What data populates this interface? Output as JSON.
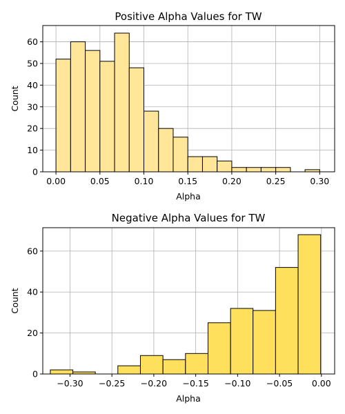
{
  "chart_data": [
    {
      "type": "bar",
      "title": "Positive Alpha Values for TW",
      "xlabel": "Alpha",
      "ylabel": "Count",
      "color": "#ffe699",
      "edge_color": "#000000",
      "grid": true,
      "xlim": [
        -0.015,
        0.317
      ],
      "ylim": [
        0,
        67.5
      ],
      "xticks": [
        0.0,
        0.05,
        0.1,
        0.15,
        0.2,
        0.25,
        0.3
      ],
      "xtick_labels": [
        "0.00",
        "0.05",
        "0.10",
        "0.15",
        "0.20",
        "0.25",
        "0.30"
      ],
      "yticks": [
        0,
        10,
        20,
        30,
        40,
        50,
        60
      ],
      "ytick_labels": [
        "0",
        "10",
        "20",
        "30",
        "40",
        "50",
        "60"
      ],
      "bin_edges": [
        0.0,
        0.01667,
        0.03333,
        0.05,
        0.06667,
        0.08333,
        0.1,
        0.11667,
        0.13333,
        0.15,
        0.16667,
        0.18333,
        0.2,
        0.21667,
        0.23333,
        0.25,
        0.26667,
        0.28333,
        0.3
      ],
      "values": [
        52,
        60,
        56,
        51,
        64,
        48,
        28,
        20,
        16,
        7,
        7,
        5,
        2,
        2,
        2,
        2,
        0,
        1
      ]
    },
    {
      "type": "bar",
      "title": "Negative Alpha Values for TW",
      "xlabel": "Alpha",
      "ylabel": "Count",
      "color": "#ffe05c",
      "edge_color": "#000000",
      "grid": true,
      "xlim": [
        -0.3325,
        0.0158
      ],
      "ylim": [
        0,
        71.4
      ],
      "xticks": [
        -0.3,
        -0.25,
        -0.2,
        -0.15,
        -0.1,
        -0.05,
        0.0
      ],
      "xtick_labels": [
        "−0.30",
        "−0.25",
        "−0.20",
        "−0.15",
        "−0.10",
        "−0.05",
        "0.00"
      ],
      "yticks": [
        0,
        20,
        40,
        60
      ],
      "ytick_labels": [
        "0",
        "20",
        "40",
        "60"
      ],
      "bin_edges": [
        -0.3235,
        -0.2966,
        -0.2698,
        -0.2429,
        -0.216,
        -0.1891,
        -0.1622,
        -0.1353,
        -0.1084,
        -0.0816,
        -0.0547,
        -0.0278,
        -0.0009
      ],
      "values": [
        2,
        1,
        0,
        4,
        9,
        7,
        10,
        25,
        32,
        31,
        52,
        68
      ]
    }
  ]
}
